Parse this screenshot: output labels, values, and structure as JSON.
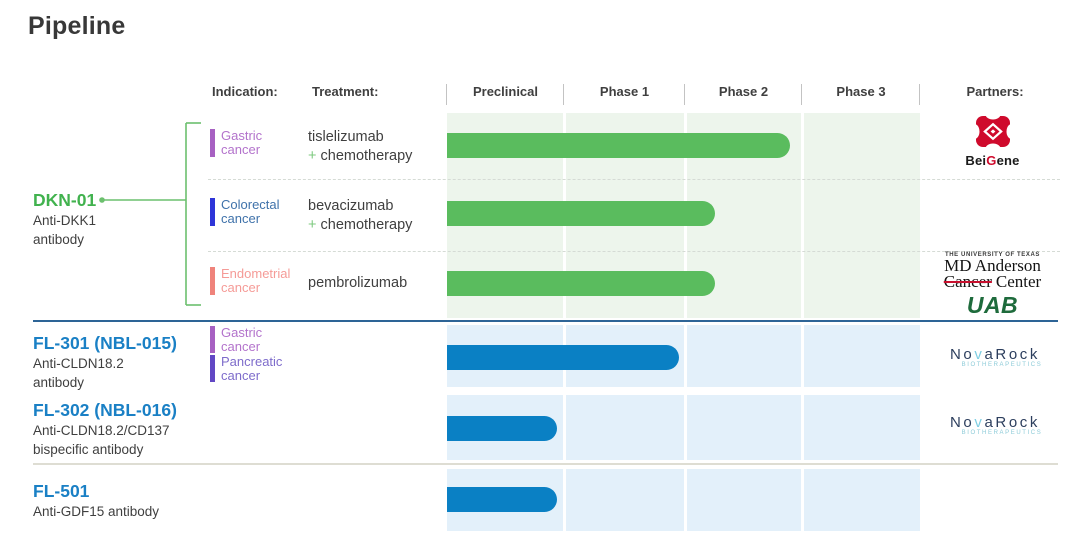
{
  "title": "Pipeline",
  "header": {
    "indication": "Indication:",
    "treatment": "Treatment:",
    "partners": "Partners:",
    "phases": [
      "Preclinical",
      "Phase 1",
      "Phase 2",
      "Phase 3"
    ]
  },
  "programs": [
    {
      "name": "DKN-01",
      "desc1": "Anti-DKK1",
      "desc2": "antibody"
    },
    {
      "name": "FL-301 (NBL-015)",
      "desc1": "Anti-CLDN18.2",
      "desc2": "antibody"
    },
    {
      "name": "FL-302 (NBL-016)",
      "desc1": "Anti-CLDN18.2/CD137",
      "desc2": "bispecific antibody"
    },
    {
      "name": "FL-501",
      "desc1": "Anti-GDF15 antibody"
    }
  ],
  "indications": {
    "gastric": {
      "l1": "Gastric",
      "l2": "cancer"
    },
    "colorectal": {
      "l1": "Colorectal",
      "l2": "cancer"
    },
    "endometrial": {
      "l1": "Endometrial",
      "l2": "cancer"
    },
    "pancreatic": {
      "l1": "Pancreatic",
      "l2": "cancer"
    }
  },
  "treatments": {
    "row1": {
      "drug": "tislelizumab",
      "plus": "+",
      "combo": "chemotherapy"
    },
    "row2": {
      "drug": "bevacizumab",
      "plus": "+",
      "combo": "chemotherapy"
    },
    "row3": {
      "drug": "pembrolizumab"
    }
  },
  "partners": {
    "beigene": {
      "bei": "Bei",
      "g": "G",
      "ene": "ene"
    },
    "mdanderson": {
      "small": "THE UNIVERSITY OF TEXAS",
      "line1": "MD Anderson",
      "cancer": "Cancer",
      "center": "Center"
    },
    "uab": {
      "text": "UAB"
    },
    "novarock": {
      "no": "No",
      "v": "v",
      "arock": "aRock",
      "sub": "BIOTHERAPEUTICS"
    }
  },
  "colors": {
    "green_bar": "#5abc5e",
    "green_tint": "#edf5ec",
    "green_title": "#41b24e",
    "blue_bar": "#0a80c4",
    "blue_tint": "#e3f0fa",
    "blue_title": "#1a80c5",
    "gastric_purple": "#a761c2",
    "colorectal_blue": "#2e35d8",
    "endometrial_salmon": "#ef837b",
    "pancreatic_purple": "#6248c4",
    "section_divider_blue": "#2d6496",
    "beigene_red": "#cf0a2c",
    "uab_green": "#1e6b3c",
    "novarock_navy": "#2c3e5d",
    "novarock_cyan": "#7fcfe3"
  },
  "chart_data": {
    "type": "gantt",
    "title": "Pipeline",
    "phases": [
      "Preclinical",
      "Phase 1",
      "Phase 2",
      "Phase 3"
    ],
    "progress_note": "progress is fraction of full 4-phase track (0-1)",
    "rows": [
      {
        "program": "DKN-01",
        "indication": "Gastric cancer",
        "treatment": "tislelizumab + chemotherapy",
        "phase_reached": "Phase 2",
        "progress": 0.725,
        "partner": "BeiGene",
        "bar_color": "#5abc5e"
      },
      {
        "program": "DKN-01",
        "indication": "Colorectal cancer",
        "treatment": "bevacizumab + chemotherapy",
        "phase_reached": "Phase 2",
        "progress": 0.567,
        "partner": "",
        "bar_color": "#5abc5e"
      },
      {
        "program": "DKN-01",
        "indication": "Endometrial cancer",
        "treatment": "pembrolizumab",
        "phase_reached": "Phase 2",
        "progress": 0.567,
        "partner": "MD Anderson Cancer Center; UAB",
        "bar_color": "#5abc5e"
      },
      {
        "program": "FL-301 (NBL-015)",
        "indication": "Gastric cancer; Pancreatic cancer",
        "treatment": "",
        "phase_reached": "Phase 1",
        "progress": 0.49,
        "partner": "NovaRock Biotherapeutics",
        "bar_color": "#0a80c4"
      },
      {
        "program": "FL-302 (NBL-016)",
        "indication": "",
        "treatment": "",
        "phase_reached": "Preclinical",
        "progress": 0.233,
        "partner": "NovaRock Biotherapeutics",
        "bar_color": "#0a80c4"
      },
      {
        "program": "FL-501",
        "indication": "",
        "treatment": "",
        "phase_reached": "Preclinical",
        "progress": 0.233,
        "partner": "",
        "bar_color": "#0a80c4"
      }
    ]
  }
}
